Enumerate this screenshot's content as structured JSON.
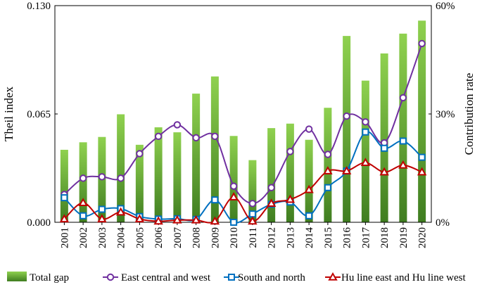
{
  "chart_data": {
    "type": "bar+line",
    "title": "",
    "xlabel": "",
    "ylabel_left": "Theil index",
    "ylabel_right": "Contribution rate",
    "ylim_left": [
      0,
      0.13
    ],
    "ylim_right": [
      0,
      60
    ],
    "yticks_left": [
      "0.000",
      "0.065",
      "0.130"
    ],
    "yticks_right": [
      "0%",
      "30%",
      "60%"
    ],
    "categories": [
      "2001",
      "2002",
      "2003",
      "2004",
      "2005",
      "2006",
      "2007",
      "2008",
      "2009",
      "2010",
      "2011",
      "2012",
      "2013",
      "2014",
      "2015",
      "2016",
      "2017",
      "2018",
      "2019",
      "2020"
    ],
    "bar_series": {
      "name": "Total gap",
      "axis": "left",
      "color_top": "#8fd14f",
      "color_bottom": "#3f7d20",
      "values": [
        0.0435,
        0.048,
        0.0512,
        0.0648,
        0.0465,
        0.057,
        0.054,
        0.0772,
        0.0875,
        0.0518,
        0.0373,
        0.0565,
        0.0592,
        0.0495,
        0.0687,
        0.1118,
        0.085,
        0.1013,
        0.1132,
        0.121
      ]
    },
    "series": [
      {
        "name": "East central and west",
        "axis": "right",
        "color": "#7030a0",
        "marker": "circle",
        "values": [
          7.7,
          12.2,
          12.6,
          12.2,
          19.0,
          23.8,
          27.0,
          23.4,
          23.8,
          10.0,
          5.2,
          9.6,
          19.6,
          25.8,
          18.8,
          29.4,
          27.8,
          22.0,
          34.5,
          49.5
        ]
      },
      {
        "name": "South and north",
        "axis": "right",
        "color": "#0070c0",
        "marker": "square",
        "values": [
          6.8,
          1.8,
          3.6,
          3.8,
          1.6,
          0.9,
          1.0,
          0.8,
          6.2,
          0.0,
          2.3,
          5.0,
          5.6,
          1.8,
          9.6,
          14.2,
          25.0,
          20.5,
          22.5,
          18.0
        ]
      },
      {
        "name": "Hu line east and Hu line west",
        "axis": "right",
        "color": "#c00000",
        "marker": "triangle",
        "values": [
          0.9,
          5.4,
          0.9,
          2.8,
          0.9,
          0.3,
          0.6,
          0.6,
          0.3,
          7.0,
          0.3,
          5.2,
          6.3,
          9.0,
          14.2,
          14.2,
          16.5,
          13.9,
          15.8,
          13.9
        ]
      }
    ],
    "legend": [
      "Total gap",
      "East central and west",
      "South and north",
      "Hu line east and Hu line west"
    ],
    "legend_position": "bottom"
  }
}
